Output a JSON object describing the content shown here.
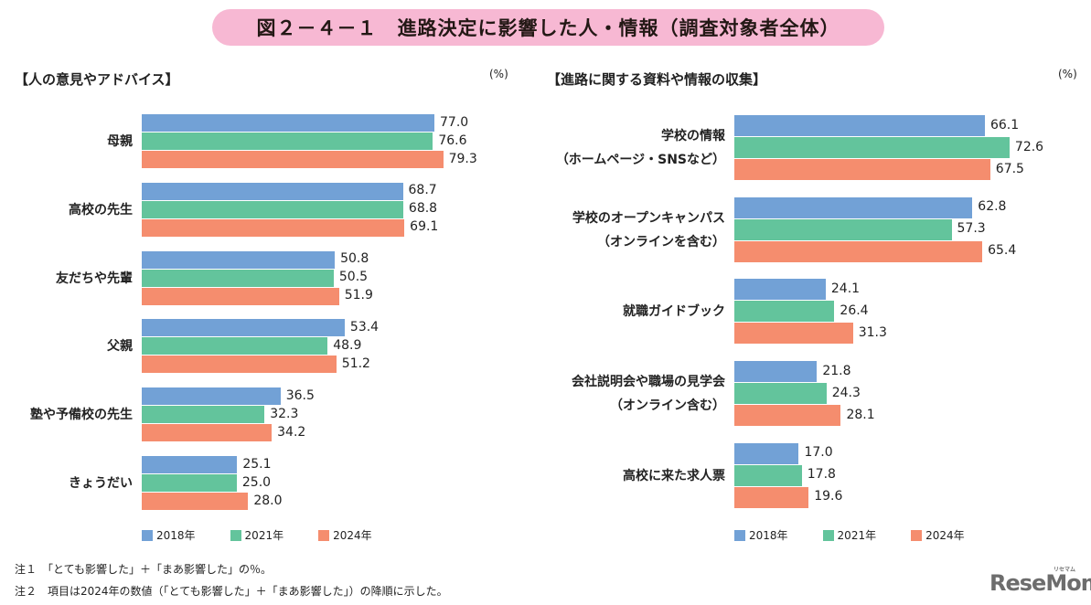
{
  "title": "図２－４－１　進路決定に影響した人・情報（調査対象者全体）",
  "colors": {
    "2018": "#72a1d6",
    "2021": "#63c49c",
    "2024": "#f58d6e",
    "title_bg": "#f7b8d3"
  },
  "chart_data": [
    {
      "type": "bar",
      "orientation": "horizontal",
      "title": "【人の意見やアドバイス】",
      "unit": "(%)",
      "categories": [
        "母親",
        "高校の先生",
        "友だちや先輩",
        "父親",
        "塾や予備校の先生",
        "きょうだい"
      ],
      "series": [
        {
          "name": "2018年",
          "values": [
            77.0,
            68.7,
            50.8,
            53.4,
            36.5,
            25.1
          ]
        },
        {
          "name": "2021年",
          "values": [
            76.6,
            68.8,
            50.5,
            48.9,
            32.3,
            25.0
          ]
        },
        {
          "name": "2024年",
          "values": [
            79.3,
            69.1,
            51.9,
            51.2,
            34.2,
            28.0
          ]
        }
      ],
      "legend": "bottom"
    },
    {
      "type": "bar",
      "orientation": "horizontal",
      "title": "【進路に関する資料や情報の収集】",
      "unit": "(%)",
      "categories": [
        "学校の情報\n（ホームページ・SNSなど）",
        "学校のオープンキャンパス\n（オンラインを含む）",
        "就職ガイドブック",
        "会社説明会や職場の見学会\n（オンライン含む）",
        "高校に来た求人票"
      ],
      "series": [
        {
          "name": "2018年",
          "values": [
            66.1,
            62.8,
            24.1,
            21.8,
            17.0
          ]
        },
        {
          "name": "2021年",
          "values": [
            72.6,
            57.3,
            26.4,
            24.3,
            17.8
          ]
        },
        {
          "name": "2024年",
          "values": [
            67.5,
            65.4,
            31.3,
            28.1,
            19.6
          ]
        }
      ],
      "legend": "bottom"
    }
  ],
  "notes": [
    "注１　「とても影響した」＋「まあ影響した」の％。",
    "注２　項目は2024年の数値（「とても影響した」＋「まあ影響した」）の降順に示した。"
  ],
  "logo": {
    "text": "ReseMom",
    "sub": "リセマム"
  }
}
